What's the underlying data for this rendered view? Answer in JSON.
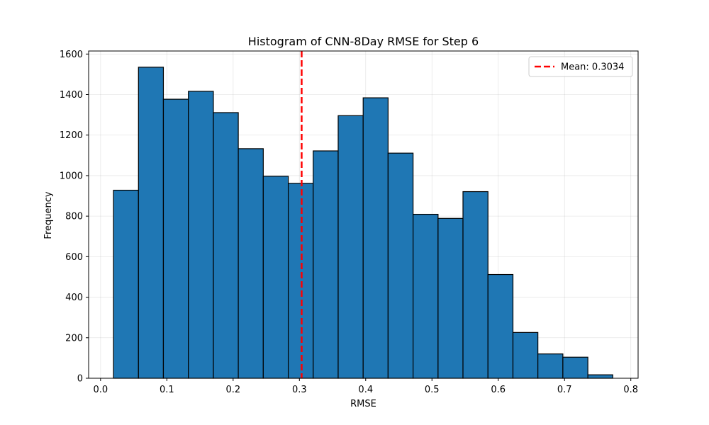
{
  "chart_data": {
    "type": "bar",
    "title": "Histogram of CNN-8Day RMSE for Step 6",
    "xlabel": "RMSE",
    "ylabel": "Frequency",
    "xlim": [
      -0.018,
      0.811
    ],
    "ylim": [
      0,
      1615
    ],
    "x_ticks": [
      0.0,
      0.1,
      0.2,
      0.3,
      0.4,
      0.5,
      0.6,
      0.7,
      0.8
    ],
    "x_tick_labels": [
      "0.0",
      "0.1",
      "0.2",
      "0.3",
      "0.4",
      "0.5",
      "0.6",
      "0.7",
      "0.8"
    ],
    "y_ticks": [
      0,
      200,
      400,
      600,
      800,
      1000,
      1200,
      1400,
      1600
    ],
    "y_tick_labels": [
      "0",
      "200",
      "400",
      "600",
      "800",
      "1000",
      "1200",
      "1400",
      "1600"
    ],
    "grid": true,
    "bin_edges": [
      0.0195,
      0.0572,
      0.0948,
      0.1325,
      0.1702,
      0.2078,
      0.2455,
      0.2832,
      0.3208,
      0.3585,
      0.3962,
      0.4338,
      0.4715,
      0.5092,
      0.5468,
      0.5845,
      0.6222,
      0.6598,
      0.6975,
      0.7352,
      0.7728
    ],
    "values": [
      928,
      1535,
      1377,
      1416,
      1311,
      1133,
      997,
      962,
      1122,
      1296,
      1384,
      1111,
      809,
      789,
      921,
      512,
      226,
      120,
      104,
      17
    ],
    "bar_color": "#1f77b4",
    "bar_edge_color": "#000000",
    "mean_line": {
      "value": 0.3034,
      "label": "Mean: 0.3034",
      "color": "#ff0000",
      "style": "dashed"
    },
    "legend": {
      "position": "top-right",
      "entries": [
        "Mean: 0.3034"
      ]
    }
  }
}
